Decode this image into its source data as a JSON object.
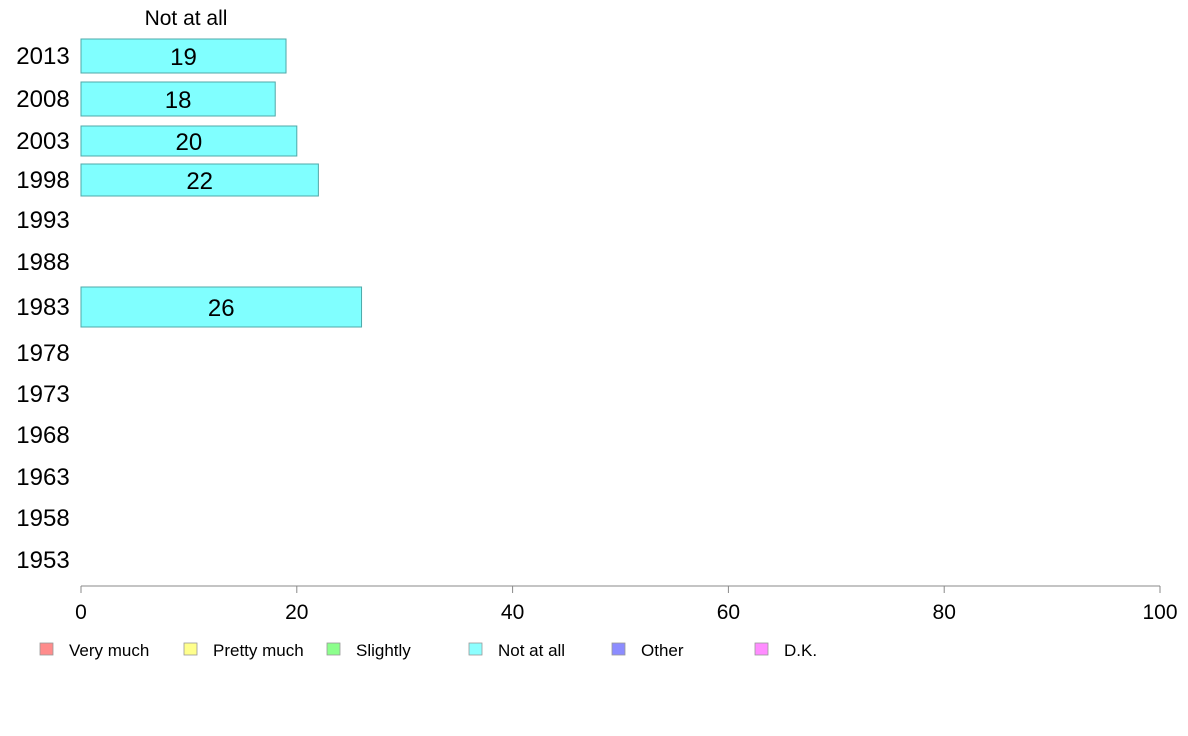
{
  "chart_data": {
    "type": "bar",
    "orientation": "horizontal",
    "panel_title": "Not at all",
    "categories": [
      "2013",
      "2008",
      "2003",
      "1998",
      "1993",
      "1988",
      "1983",
      "1978",
      "1973",
      "1968",
      "1963",
      "1958",
      "1953"
    ],
    "series": [
      {
        "name": "Not at all",
        "values": [
          19,
          18,
          20,
          22,
          null,
          null,
          26,
          null,
          null,
          null,
          null,
          null,
          null
        ]
      }
    ],
    "bar_labels": [
      "19",
      "18",
      "20",
      "22",
      "",
      "",
      "26",
      "",
      "",
      "",
      "",
      "",
      ""
    ],
    "xlim": [
      0,
      100
    ],
    "xticks": [
      "0",
      "20",
      "40",
      "60",
      "80",
      "100"
    ],
    "grid": false,
    "legend": {
      "placement": "bottom",
      "entries": [
        {
          "label": "Very much",
          "color": "#ff8c8c"
        },
        {
          "label": "Pretty much",
          "color": "#ffff8c"
        },
        {
          "label": "Slightly",
          "color": "#8cff8c"
        },
        {
          "label": "Not at all",
          "color": "#8cffff"
        },
        {
          "label": "Other",
          "color": "#8c8cff"
        },
        {
          "label": "D.K.",
          "color": "#ff8cff"
        }
      ]
    },
    "colors": {
      "bar_fill": "#80ffff",
      "bar_stroke": "#4fa8a8",
      "axis": "#888888"
    }
  }
}
